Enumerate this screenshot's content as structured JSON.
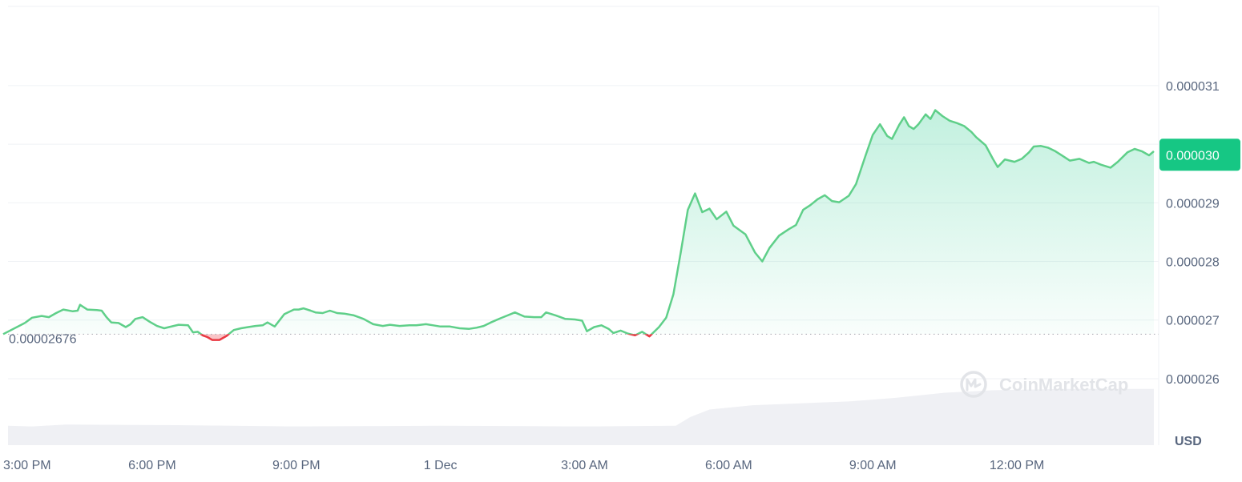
{
  "chart_data": {
    "type": "area",
    "currency": "USD",
    "opening_price_label": "0.00002676",
    "opening_price": 2.676e-05,
    "current_price_label": "0.000030",
    "current_price": 2.98e-05,
    "y_ticks": [
      {
        "label": "0.000031",
        "value": 3.1e-05
      },
      {
        "label": "0.000030",
        "value": 3e-05
      },
      {
        "label": "0.000029",
        "value": 2.9e-05
      },
      {
        "label": "0.000028",
        "value": 2.8e-05
      },
      {
        "label": "0.000027",
        "value": 2.7e-05
      },
      {
        "label": "0.000026",
        "value": 2.6e-05
      }
    ],
    "y_range": [
      2.574e-05,
      3.205e-05
    ],
    "x_ticks": [
      {
        "label": "3:00 PM",
        "hours": 0
      },
      {
        "label": "6:00 PM",
        "hours": 3
      },
      {
        "label": "9:00 PM",
        "hours": 6
      },
      {
        "label": "1 Dec",
        "hours": 9
      },
      {
        "label": "3:00 AM",
        "hours": 12
      },
      {
        "label": "6:00 AM",
        "hours": 15
      },
      {
        "label": "9:00 AM",
        "hours": 18
      },
      {
        "label": "12:00 PM",
        "hours": 21
      }
    ],
    "x_range_hours": [
      0,
      23.85
    ],
    "grid": true,
    "colors": {
      "up": "#16c784",
      "down": "#ea3943",
      "line_up": "#5fcf89",
      "volume": "#eff0f4",
      "grid": "#eff2f5"
    },
    "price_series": [
      [
        0.35,
        2.695e-05
      ],
      [
        0.5,
        2.704e-05
      ],
      [
        0.7,
        2.707e-05
      ],
      [
        0.85,
        2.705e-05
      ],
      [
        1.0,
        2.712e-05
      ],
      [
        1.15,
        2.718e-05
      ],
      [
        1.35,
        2.715e-05
      ],
      [
        1.45,
        2.716e-05
      ],
      [
        1.5,
        2.726e-05
      ],
      [
        1.65,
        2.718e-05
      ],
      [
        1.85,
        2.717e-05
      ],
      [
        1.95,
        2.716e-05
      ],
      [
        2.05,
        2.705e-05
      ],
      [
        2.15,
        2.696e-05
      ],
      [
        2.3,
        2.695e-05
      ],
      [
        2.45,
        2.688e-05
      ],
      [
        2.55,
        2.693e-05
      ],
      [
        2.65,
        2.702e-05
      ],
      [
        2.8,
        2.705e-05
      ],
      [
        2.95,
        2.697e-05
      ],
      [
        3.1,
        2.69e-05
      ],
      [
        3.25,
        2.686e-05
      ],
      [
        3.35,
        2.688e-05
      ],
      [
        3.55,
        2.692e-05
      ],
      [
        3.75,
        2.691e-05
      ],
      [
        3.85,
        2.679e-05
      ],
      [
        3.95,
        2.68e-05
      ],
      [
        4.05,
        2.674e-05
      ],
      [
        4.15,
        2.671e-05
      ],
      [
        4.25,
        2.666e-05
      ],
      [
        4.4,
        2.666e-05
      ],
      [
        4.55,
        2.673e-05
      ],
      [
        4.7,
        2.683e-05
      ],
      [
        4.85,
        2.686e-05
      ],
      [
        5.0,
        2.688e-05
      ],
      [
        5.15,
        2.69e-05
      ],
      [
        5.3,
        2.691e-05
      ],
      [
        5.4,
        2.696e-05
      ],
      [
        5.55,
        2.689e-05
      ],
      [
        5.75,
        2.71e-05
      ],
      [
        5.95,
        2.718e-05
      ],
      [
        6.05,
        2.718e-05
      ],
      [
        6.15,
        2.72e-05
      ],
      [
        6.3,
        2.716e-05
      ],
      [
        6.4,
        2.713e-05
      ],
      [
        6.55,
        2.712e-05
      ],
      [
        6.7,
        2.716e-05
      ],
      [
        6.85,
        2.712e-05
      ],
      [
        7.0,
        2.711e-05
      ],
      [
        7.2,
        2.708e-05
      ],
      [
        7.4,
        2.702e-05
      ],
      [
        7.6,
        2.693e-05
      ],
      [
        7.8,
        2.69e-05
      ],
      [
        7.95,
        2.692e-05
      ],
      [
        8.15,
        2.69e-05
      ],
      [
        8.35,
        2.691e-05
      ],
      [
        8.5,
        2.691e-05
      ],
      [
        8.7,
        2.693e-05
      ],
      [
        8.85,
        2.691e-05
      ],
      [
        9.0,
        2.689e-05
      ],
      [
        9.2,
        2.689e-05
      ],
      [
        9.4,
        2.686e-05
      ],
      [
        9.6,
        2.685e-05
      ],
      [
        9.75,
        2.687e-05
      ],
      [
        9.9,
        2.69e-05
      ],
      [
        10.05,
        2.696e-05
      ],
      [
        10.25,
        2.703e-05
      ],
      [
        10.4,
        2.708e-05
      ],
      [
        10.55,
        2.713e-05
      ],
      [
        10.75,
        2.706e-05
      ],
      [
        10.95,
        2.705e-05
      ],
      [
        11.1,
        2.705e-05
      ],
      [
        11.2,
        2.713e-05
      ],
      [
        11.4,
        2.708e-05
      ],
      [
        11.6,
        2.702e-05
      ],
      [
        11.8,
        2.701e-05
      ],
      [
        11.95,
        2.699e-05
      ],
      [
        12.05,
        2.681e-05
      ],
      [
        12.2,
        2.688e-05
      ],
      [
        12.35,
        2.691e-05
      ],
      [
        12.5,
        2.685e-05
      ],
      [
        12.6,
        2.678e-05
      ],
      [
        12.75,
        2.682e-05
      ],
      [
        12.9,
        2.677e-05
      ],
      [
        13.05,
        2.674e-05
      ],
      [
        13.2,
        2.68e-05
      ],
      [
        13.35,
        2.672e-05
      ],
      [
        13.55,
        2.688e-05
      ],
      [
        13.7,
        2.704e-05
      ],
      [
        13.85,
        2.744e-05
      ],
      [
        14.0,
        2.814e-05
      ],
      [
        14.15,
        2.888e-05
      ],
      [
        14.3,
        2.916e-05
      ],
      [
        14.45,
        2.884e-05
      ],
      [
        14.6,
        2.89e-05
      ],
      [
        14.75,
        2.872e-05
      ],
      [
        14.95,
        2.885e-05
      ],
      [
        15.1,
        2.861e-05
      ],
      [
        15.35,
        2.846e-05
      ],
      [
        15.55,
        2.815e-05
      ],
      [
        15.7,
        2.8e-05
      ],
      [
        15.85,
        2.823e-05
      ],
      [
        16.05,
        2.844e-05
      ],
      [
        16.25,
        2.855e-05
      ],
      [
        16.4,
        2.862e-05
      ],
      [
        16.55,
        2.888e-05
      ],
      [
        16.7,
        2.896e-05
      ],
      [
        16.85,
        2.906e-05
      ],
      [
        17.0,
        2.913e-05
      ],
      [
        17.15,
        2.903e-05
      ],
      [
        17.3,
        2.901e-05
      ],
      [
        17.5,
        2.912e-05
      ],
      [
        17.65,
        2.932e-05
      ],
      [
        17.85,
        2.981e-05
      ],
      [
        18.0,
        3.016e-05
      ],
      [
        18.15,
        3.034e-05
      ],
      [
        18.3,
        3.014e-05
      ],
      [
        18.4,
        3.009e-05
      ],
      [
        18.55,
        3.033e-05
      ],
      [
        18.65,
        3.046e-05
      ],
      [
        18.75,
        3.031e-05
      ],
      [
        18.85,
        3.026e-05
      ],
      [
        18.95,
        3.034e-05
      ],
      [
        19.1,
        3.051e-05
      ],
      [
        19.2,
        3.043e-05
      ],
      [
        19.3,
        3.058e-05
      ],
      [
        19.45,
        3.048e-05
      ],
      [
        19.6,
        3.04e-05
      ],
      [
        19.75,
        3.036e-05
      ],
      [
        19.9,
        3.031e-05
      ],
      [
        20.05,
        3.021e-05
      ],
      [
        20.15,
        3.012e-05
      ],
      [
        20.25,
        3.005e-05
      ],
      [
        20.35,
        2.998e-05
      ],
      [
        20.5,
        2.975e-05
      ],
      [
        20.6,
        2.961e-05
      ],
      [
        20.75,
        2.974e-05
      ],
      [
        20.95,
        2.97e-05
      ],
      [
        21.1,
        2.975e-05
      ],
      [
        21.25,
        2.986e-05
      ],
      [
        21.35,
        2.996e-05
      ],
      [
        21.5,
        2.997e-05
      ],
      [
        21.65,
        2.994e-05
      ],
      [
        21.8,
        2.988e-05
      ],
      [
        21.95,
        2.98e-05
      ],
      [
        22.1,
        2.972e-05
      ],
      [
        22.3,
        2.975e-05
      ],
      [
        22.5,
        2.968e-05
      ],
      [
        22.6,
        2.97e-05
      ],
      [
        22.75,
        2.965e-05
      ],
      [
        22.95,
        2.96e-05
      ],
      [
        23.1,
        2.97e-05
      ],
      [
        23.3,
        2.986e-05
      ],
      [
        23.45,
        2.992e-05
      ],
      [
        23.6,
        2.988e-05
      ],
      [
        23.75,
        2.981e-05
      ],
      [
        23.85,
        2.988e-05
      ]
    ],
    "volume_series": [
      [
        0,
        0.31
      ],
      [
        0.5,
        0.3
      ],
      [
        1.2,
        0.33
      ],
      [
        3.5,
        0.32
      ],
      [
        6.0,
        0.3
      ],
      [
        9.0,
        0.31
      ],
      [
        12.0,
        0.3
      ],
      [
        13.9,
        0.31
      ],
      [
        14.2,
        0.45
      ],
      [
        14.6,
        0.57
      ],
      [
        15.5,
        0.64
      ],
      [
        16.5,
        0.67
      ],
      [
        17.5,
        0.7
      ],
      [
        18.0,
        0.73
      ],
      [
        18.5,
        0.76
      ],
      [
        19.5,
        0.84
      ],
      [
        20.5,
        0.88
      ],
      [
        22.0,
        0.9
      ],
      [
        23.85,
        0.9
      ]
    ]
  },
  "watermark": {
    "text": "CoinMarketCap"
  }
}
